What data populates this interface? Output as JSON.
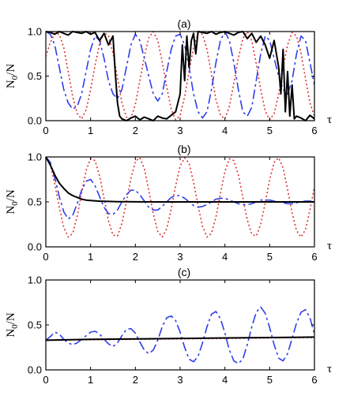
{
  "chart_data": [
    {
      "type": "line",
      "panel_label": "(a)",
      "xlabel": "τ",
      "ylabel": "N0/N",
      "xlim": [
        0,
        6
      ],
      "ylim": [
        0,
        1
      ],
      "x_ticks": [
        "0",
        "1",
        "2",
        "3",
        "4",
        "5",
        "6"
      ],
      "y_ticks": [
        "0.0",
        "0.5",
        "1.0"
      ],
      "colors": {
        "solid": "#000000",
        "dashed": "#2f3fe8",
        "dotted": "#e03030"
      },
      "series": [
        {
          "style": "dotted",
          "color": "#e03030",
          "x": [
            0,
            0.1,
            0.2,
            0.3,
            0.4,
            0.5,
            0.6,
            0.7,
            0.8,
            0.9,
            1.0,
            1.1,
            1.2,
            1.3,
            1.4,
            1.5,
            1.6,
            1.7,
            1.8,
            1.9,
            2.0,
            2.1,
            2.2,
            2.3,
            2.4,
            2.5,
            2.6,
            2.7,
            2.8,
            2.9,
            3.0,
            3.1,
            3.2,
            3.3,
            3.4,
            3.5,
            3.6,
            3.7,
            3.8,
            3.9,
            4.0,
            4.1,
            4.2,
            4.3,
            4.4,
            4.5,
            4.6,
            4.7,
            4.8,
            4.9,
            5.0,
            5.1,
            5.2,
            5.3,
            5.4,
            5.5,
            5.6,
            5.7,
            5.8,
            5.9,
            6.0
          ],
          "y": [
            0.72,
            0.88,
            0.98,
            0.97,
            0.82,
            0.55,
            0.27,
            0.08,
            0.02,
            0.12,
            0.35,
            0.62,
            0.86,
            0.99,
            0.95,
            0.76,
            0.48,
            0.2,
            0.04,
            0.03,
            0.18,
            0.45,
            0.72,
            0.93,
            1.0,
            0.9,
            0.66,
            0.38,
            0.13,
            0.01,
            0.06,
            0.27,
            0.55,
            0.82,
            0.98,
            0.97,
            0.8,
            0.52,
            0.24,
            0.06,
            0.02,
            0.16,
            0.42,
            0.7,
            0.92,
            1.0,
            0.9,
            0.64,
            0.35,
            0.11,
            0.01,
            0.08,
            0.3,
            0.6,
            0.85,
            0.99,
            0.95,
            0.76,
            0.47,
            0.2,
            0.05
          ]
        },
        {
          "style": "dashed",
          "color": "#2f3fe8",
          "x": [
            0,
            0.1,
            0.2,
            0.3,
            0.4,
            0.5,
            0.6,
            0.7,
            0.8,
            0.9,
            1.0,
            1.1,
            1.2,
            1.3,
            1.4,
            1.5,
            1.6,
            1.7,
            1.8,
            1.9,
            2.0,
            2.1,
            2.2,
            2.3,
            2.4,
            2.5,
            2.6,
            2.7,
            2.8,
            2.9,
            3.0,
            3.1,
            3.2,
            3.3,
            3.4,
            3.5,
            3.6,
            3.7,
            3.8,
            3.9,
            4.0,
            4.1,
            4.2,
            4.3,
            4.4,
            4.5,
            4.6,
            4.7,
            4.8,
            4.9,
            5.0,
            5.1,
            5.2,
            5.3,
            5.4,
            5.5,
            5.6,
            5.7,
            5.8,
            5.9,
            6.0
          ],
          "y": [
            1.0,
            0.97,
            0.85,
            0.6,
            0.35,
            0.2,
            0.13,
            0.16,
            0.3,
            0.55,
            0.8,
            0.95,
            0.9,
            0.7,
            0.45,
            0.3,
            0.25,
            0.35,
            0.6,
            0.85,
            0.97,
            0.9,
            0.7,
            0.5,
            0.3,
            0.22,
            0.3,
            0.55,
            0.8,
            0.95,
            0.97,
            0.85,
            0.6,
            0.3,
            0.1,
            0.03,
            0.1,
            0.35,
            0.65,
            0.9,
            1.0,
            0.9,
            0.65,
            0.35,
            0.1,
            0.05,
            0.15,
            0.45,
            0.75,
            0.95,
            0.9,
            0.7,
            0.5,
            0.35,
            0.3,
            0.45,
            0.75,
            0.95,
            0.9,
            0.65,
            0.4
          ]
        },
        {
          "style": "solid",
          "color": "#000000",
          "x": [
            0,
            0.1,
            0.2,
            0.3,
            0.4,
            0.5,
            0.6,
            0.7,
            0.8,
            0.9,
            1.0,
            1.1,
            1.2,
            1.3,
            1.4,
            1.5,
            1.55,
            1.6,
            1.65,
            1.7,
            1.8,
            1.9,
            2.0,
            2.1,
            2.2,
            2.3,
            2.4,
            2.5,
            2.6,
            2.7,
            2.8,
            2.9,
            3.0,
            3.05,
            3.1,
            3.15,
            3.2,
            3.25,
            3.3,
            3.35,
            3.4,
            3.5,
            3.6,
            3.7,
            3.8,
            3.9,
            4.0,
            4.1,
            4.2,
            4.3,
            4.4,
            4.5,
            4.6,
            4.7,
            4.8,
            4.9,
            5.0,
            5.1,
            5.2,
            5.25,
            5.3,
            5.35,
            5.4,
            5.45,
            5.5,
            5.55,
            5.6,
            5.7,
            5.8,
            5.9,
            6.0
          ],
          "y": [
            1.0,
            0.99,
            0.97,
            1.0,
            0.98,
            0.96,
            1.0,
            0.99,
            0.98,
            1.0,
            0.97,
            0.99,
            0.9,
            0.98,
            0.85,
            0.95,
            0.55,
            0.2,
            0.05,
            0.02,
            0.0,
            0.03,
            0.05,
            0.01,
            0.04,
            0.02,
            0.0,
            0.05,
            0.03,
            0.02,
            0.06,
            0.1,
            0.3,
            0.85,
            0.45,
            0.95,
            0.6,
            0.9,
            0.98,
            0.75,
            1.0,
            0.99,
            0.98,
            1.0,
            0.97,
            0.99,
            1.0,
            0.98,
            0.96,
            0.99,
            1.0,
            0.92,
            0.98,
            0.88,
            0.95,
            0.85,
            0.7,
            0.9,
            0.6,
            0.3,
            0.8,
            0.1,
            0.55,
            0.05,
            0.4,
            0.02,
            0.05,
            0.03,
            0.0,
            0.06,
            0.02
          ]
        }
      ]
    },
    {
      "type": "line",
      "panel_label": "(b)",
      "xlabel": "τ",
      "ylabel": "N0/N",
      "xlim": [
        0,
        6
      ],
      "ylim": [
        0,
        1
      ],
      "x_ticks": [
        "0",
        "1",
        "2",
        "3",
        "4",
        "5",
        "6"
      ],
      "y_ticks": [
        "0.0",
        "0.5",
        "1.0"
      ],
      "colors": {
        "solid": "#000000",
        "dashed": "#2f3fe8",
        "dotted": "#e03030"
      },
      "series": [
        {
          "style": "dotted",
          "color": "#e03030",
          "x": [
            0,
            0.1,
            0.2,
            0.3,
            0.4,
            0.5,
            0.6,
            0.7,
            0.8,
            0.9,
            1.0,
            1.1,
            1.2,
            1.3,
            1.4,
            1.5,
            1.6,
            1.7,
            1.8,
            1.9,
            2.0,
            2.1,
            2.2,
            2.3,
            2.4,
            2.5,
            2.6,
            2.7,
            2.8,
            2.9,
            3.0,
            3.1,
            3.2,
            3.3,
            3.4,
            3.5,
            3.6,
            3.7,
            3.8,
            3.9,
            4.0,
            4.1,
            4.2,
            4.3,
            4.4,
            4.5,
            4.6,
            4.7,
            4.8,
            4.9,
            5.0,
            5.1,
            5.2,
            5.3,
            5.4,
            5.5,
            5.6,
            5.7,
            5.8,
            5.9,
            6.0
          ],
          "y": [
            1.0,
            0.92,
            0.7,
            0.44,
            0.22,
            0.11,
            0.15,
            0.34,
            0.6,
            0.85,
            0.98,
            0.96,
            0.79,
            0.54,
            0.29,
            0.13,
            0.12,
            0.26,
            0.5,
            0.76,
            0.95,
            0.99,
            0.87,
            0.63,
            0.37,
            0.17,
            0.11,
            0.2,
            0.42,
            0.68,
            0.9,
            0.99,
            0.93,
            0.72,
            0.46,
            0.23,
            0.11,
            0.15,
            0.33,
            0.59,
            0.84,
            0.98,
            0.96,
            0.8,
            0.55,
            0.3,
            0.14,
            0.12,
            0.25,
            0.49,
            0.75,
            0.94,
            0.99,
            0.88,
            0.64,
            0.38,
            0.18,
            0.11,
            0.19,
            0.41,
            0.67
          ]
        },
        {
          "style": "dashed",
          "color": "#2f3fe8",
          "x": [
            0,
            0.1,
            0.2,
            0.3,
            0.4,
            0.5,
            0.6,
            0.7,
            0.8,
            0.9,
            1.0,
            1.1,
            1.2,
            1.3,
            1.4,
            1.5,
            1.6,
            1.7,
            1.8,
            1.9,
            2.0,
            2.1,
            2.2,
            2.3,
            2.4,
            2.5,
            2.6,
            2.7,
            2.8,
            2.9,
            3.0,
            3.1,
            3.2,
            3.3,
            3.4,
            3.5,
            3.6,
            3.7,
            3.8,
            3.9,
            4.0,
            4.1,
            4.2,
            4.3,
            4.4,
            4.5,
            4.6,
            4.7,
            4.8,
            4.9,
            5.0,
            5.1,
            5.2,
            5.3,
            5.4,
            5.5,
            5.6,
            5.7,
            5.8,
            5.9,
            6.0
          ],
          "y": [
            1.0,
            0.94,
            0.77,
            0.56,
            0.39,
            0.31,
            0.35,
            0.48,
            0.63,
            0.73,
            0.75,
            0.68,
            0.56,
            0.44,
            0.37,
            0.36,
            0.41,
            0.5,
            0.58,
            0.63,
            0.63,
            0.58,
            0.51,
            0.44,
            0.41,
            0.41,
            0.45,
            0.5,
            0.55,
            0.57,
            0.57,
            0.54,
            0.5,
            0.46,
            0.44,
            0.45,
            0.47,
            0.5,
            0.53,
            0.54,
            0.54,
            0.52,
            0.5,
            0.48,
            0.47,
            0.47,
            0.48,
            0.5,
            0.52,
            0.52,
            0.52,
            0.51,
            0.5,
            0.49,
            0.48,
            0.48,
            0.49,
            0.5,
            0.51,
            0.51,
            0.51
          ]
        },
        {
          "style": "solid",
          "color": "#000000",
          "x": [
            0,
            0.1,
            0.2,
            0.3,
            0.4,
            0.5,
            0.6,
            0.7,
            0.8,
            0.9,
            1.0,
            1.2,
            1.4,
            1.6,
            1.8,
            2.0,
            2.5,
            3.0,
            3.5,
            4.0,
            4.5,
            5.0,
            5.5,
            6.0
          ],
          "y": [
            1.0,
            0.91,
            0.8,
            0.71,
            0.65,
            0.6,
            0.57,
            0.55,
            0.53,
            0.52,
            0.515,
            0.508,
            0.505,
            0.503,
            0.502,
            0.501,
            0.5,
            0.5,
            0.5,
            0.5,
            0.5,
            0.5,
            0.5,
            0.5
          ]
        }
      ]
    },
    {
      "type": "line",
      "panel_label": "(c)",
      "xlabel": "τ",
      "ylabel": "N0/N",
      "xlim": [
        0,
        6
      ],
      "ylim": [
        0,
        1
      ],
      "x_ticks": [
        "0",
        "1",
        "2",
        "3",
        "4",
        "5",
        "6"
      ],
      "y_ticks": [
        "0.0",
        "0.5",
        "1.0"
      ],
      "colors": {
        "solid": "#000000",
        "dashed": "#2f3fe8",
        "dotted": "#e03030"
      },
      "series": [
        {
          "style": "dotted",
          "color": "#e03030",
          "x": [
            0,
            1,
            2,
            3,
            4,
            5,
            6
          ],
          "y": [
            0.33,
            0.335,
            0.34,
            0.345,
            0.35,
            0.355,
            0.36
          ]
        },
        {
          "style": "dashed",
          "color": "#2f3fe8",
          "x": [
            0,
            0.1,
            0.2,
            0.3,
            0.4,
            0.5,
            0.6,
            0.7,
            0.8,
            0.9,
            1.0,
            1.1,
            1.2,
            1.3,
            1.4,
            1.5,
            1.6,
            1.7,
            1.8,
            1.9,
            2.0,
            2.1,
            2.2,
            2.3,
            2.4,
            2.5,
            2.6,
            2.7,
            2.8,
            2.9,
            3.0,
            3.1,
            3.2,
            3.3,
            3.4,
            3.5,
            3.6,
            3.7,
            3.8,
            3.9,
            4.0,
            4.1,
            4.2,
            4.3,
            4.4,
            4.5,
            4.6,
            4.7,
            4.8,
            4.9,
            5.0,
            5.1,
            5.2,
            5.3,
            5.4,
            5.5,
            5.6,
            5.7,
            5.8,
            5.9,
            6.0
          ],
          "y": [
            0.33,
            0.37,
            0.42,
            0.4,
            0.34,
            0.3,
            0.28,
            0.3,
            0.34,
            0.38,
            0.42,
            0.43,
            0.4,
            0.34,
            0.29,
            0.26,
            0.3,
            0.38,
            0.45,
            0.46,
            0.41,
            0.31,
            0.22,
            0.18,
            0.22,
            0.33,
            0.48,
            0.58,
            0.6,
            0.55,
            0.42,
            0.25,
            0.12,
            0.09,
            0.15,
            0.3,
            0.48,
            0.62,
            0.65,
            0.57,
            0.41,
            0.22,
            0.1,
            0.07,
            0.12,
            0.28,
            0.48,
            0.64,
            0.7,
            0.63,
            0.47,
            0.28,
            0.13,
            0.1,
            0.18,
            0.35,
            0.52,
            0.64,
            0.67,
            0.58,
            0.4
          ]
        },
        {
          "style": "solid",
          "color": "#000000",
          "x": [
            0,
            1,
            2,
            3,
            4,
            5,
            6
          ],
          "y": [
            0.33,
            0.34,
            0.345,
            0.35,
            0.355,
            0.36,
            0.365
          ]
        }
      ]
    }
  ]
}
